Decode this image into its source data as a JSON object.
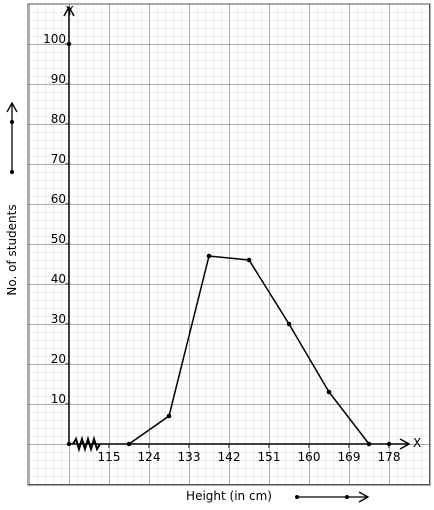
{
  "chart_data": {
    "type": "line",
    "x_label": "Height (in cm)",
    "y_label": "No. of students",
    "x_axis_letter": "X",
    "y_axis_letter": "Y",
    "x": [
      119.5,
      128.5,
      137.5,
      146.5,
      155.5,
      164.5,
      173.5
    ],
    "values": [
      0,
      7,
      47,
      46,
      30,
      13,
      0
    ],
    "color": "#000000",
    "xlim": [
      106,
      183
    ],
    "xticks": [
      115,
      124,
      133,
      142,
      151,
      160,
      169,
      178
    ],
    "ylim": [
      0,
      109
    ],
    "yticks": [
      10,
      20,
      30,
      40,
      50,
      60,
      70,
      80,
      90,
      100
    ]
  }
}
